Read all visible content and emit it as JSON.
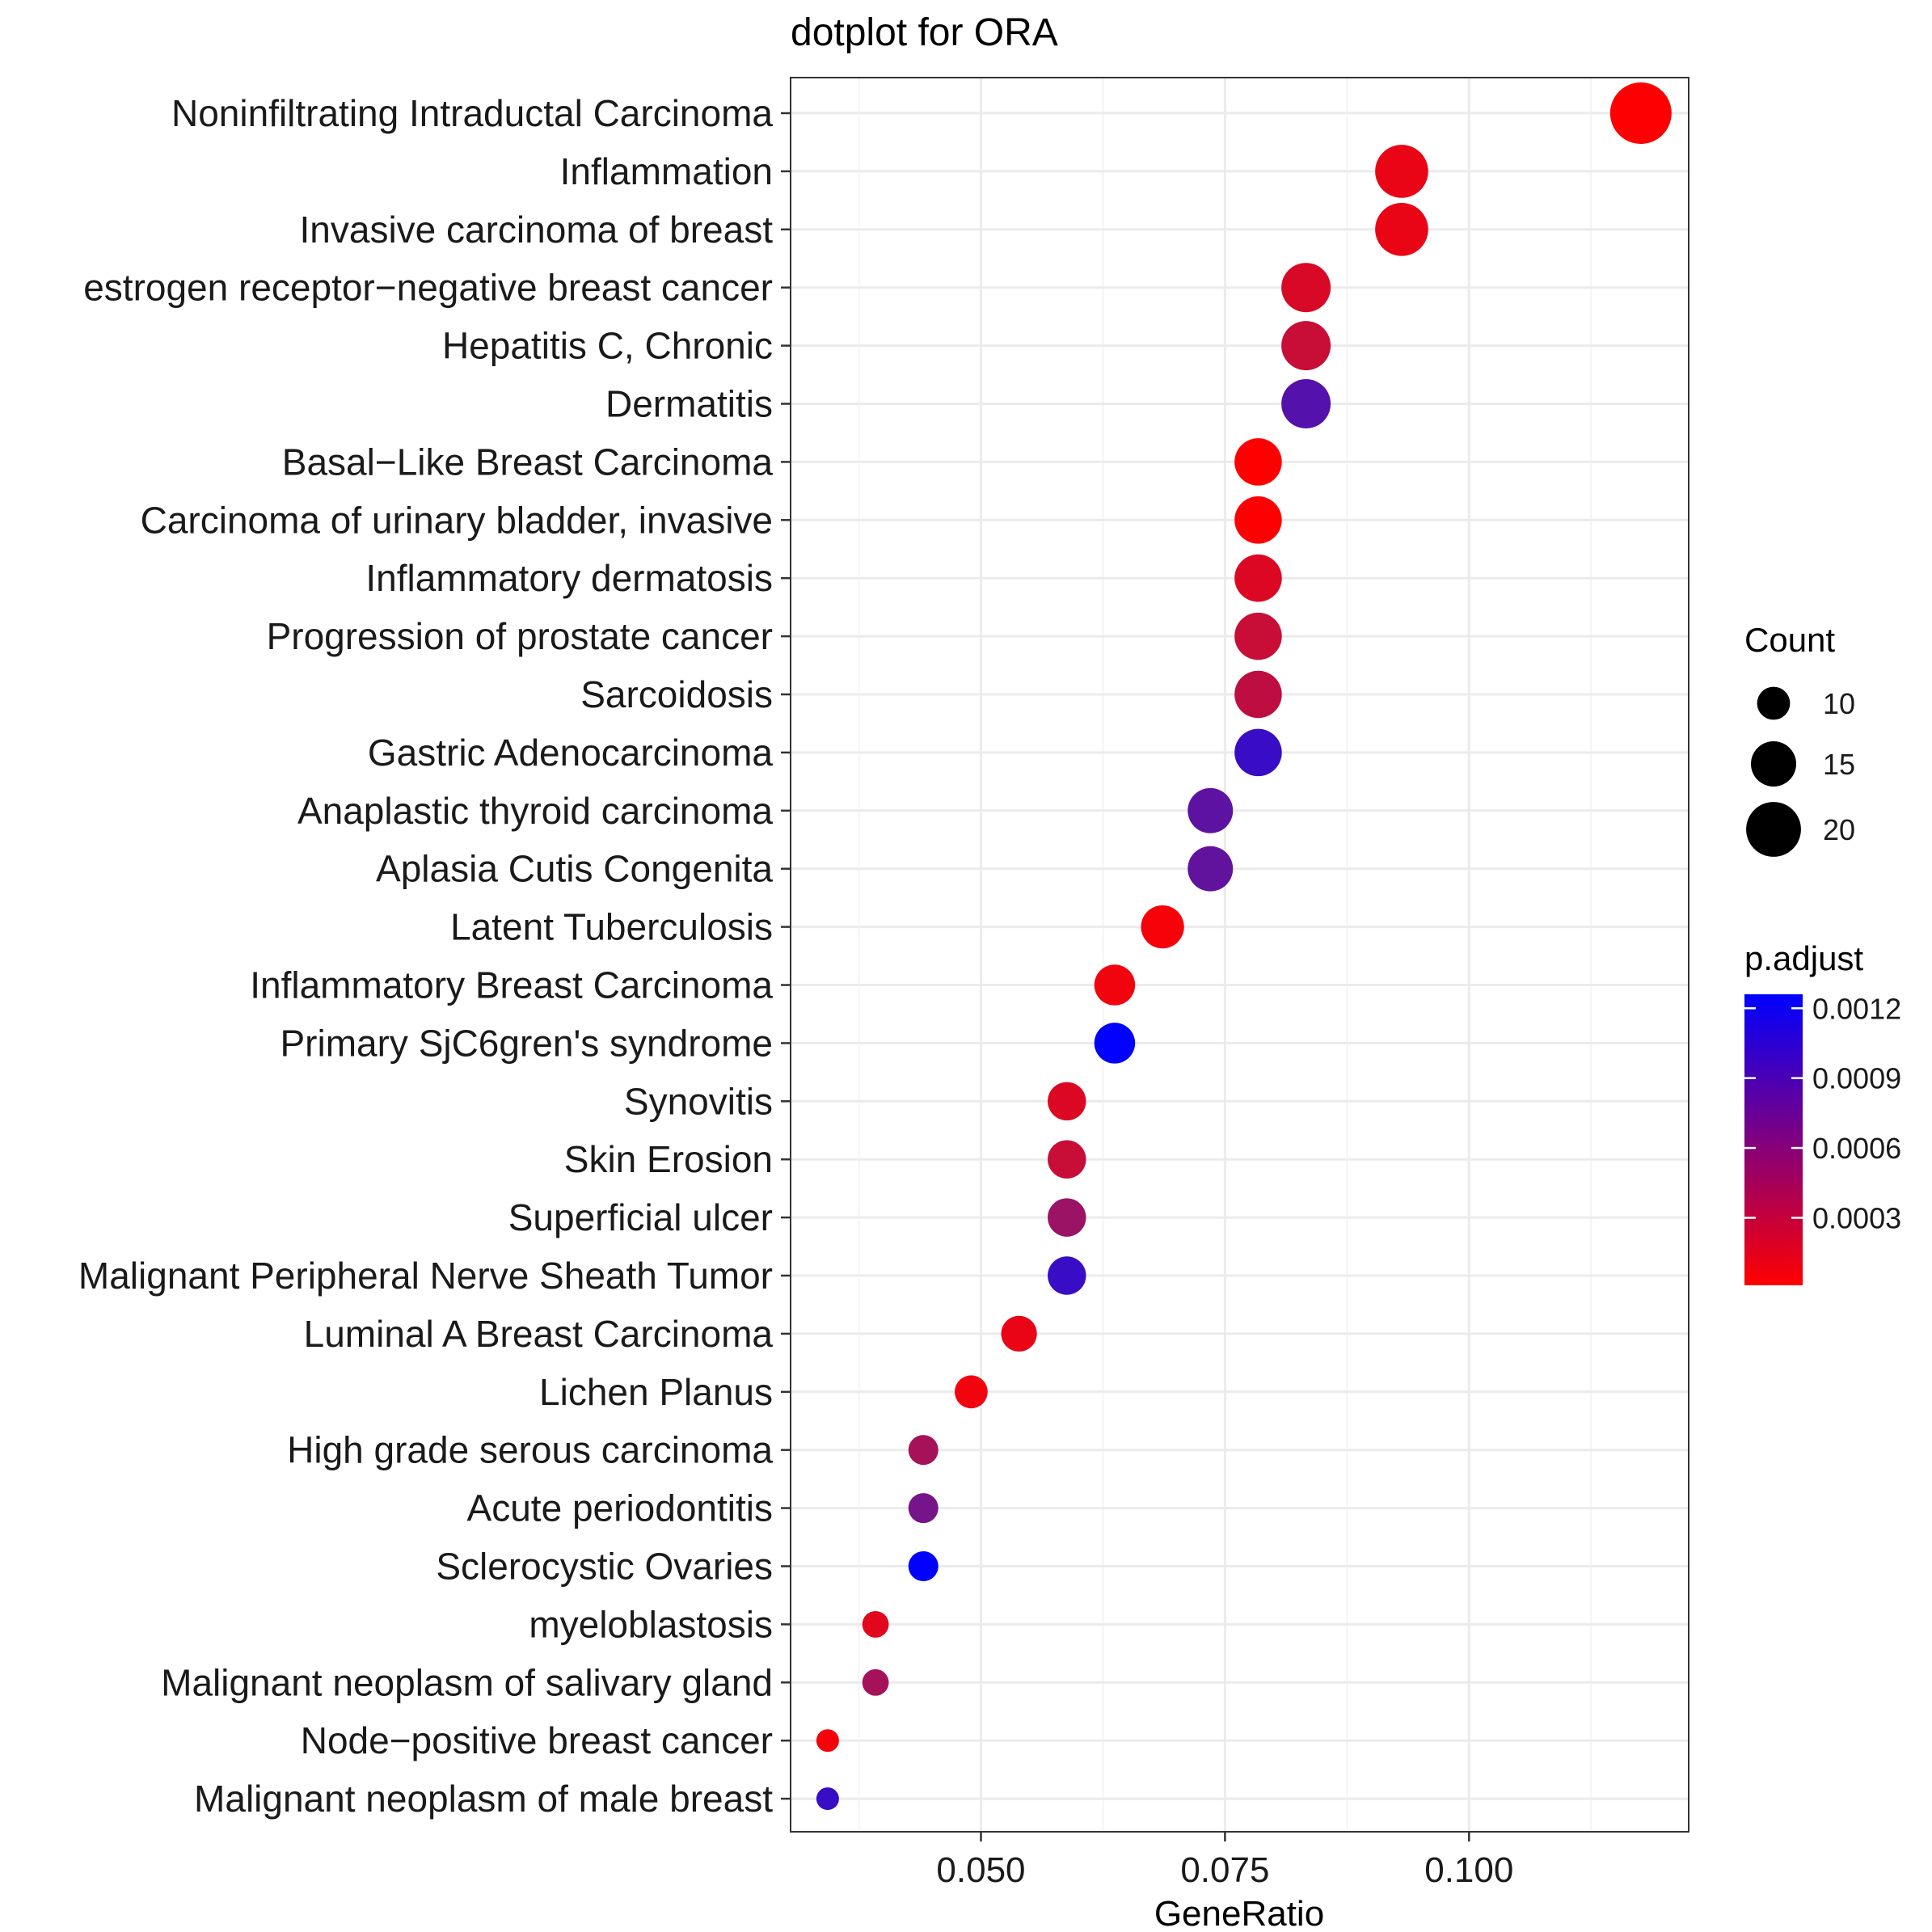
{
  "chart_data": {
    "type": "scatter",
    "title": "dotplot for ORA",
    "xlabel": "GeneRatio",
    "ylabel": "",
    "xlim": [
      0.0305,
      0.1225
    ],
    "xticks": [
      0.05,
      0.075,
      0.1
    ],
    "xtick_labels": [
      "0.050",
      "0.075",
      "0.100"
    ],
    "grid": true,
    "colors": {
      "low": "#ff0000",
      "high": "#0000ff",
      "point_outline": "none",
      "panel_border": "#333333",
      "grid_major": "#ebebeb",
      "grid_minor": "#f4f4f4"
    },
    "categories": [
      "Noninfiltrating Intraductal Carcinoma",
      "Inflammation",
      "Invasive carcinoma of breast",
      "estrogen receptor−negative breast cancer",
      "Hepatitis C, Chronic",
      "Dermatitis",
      "Basal−Like Breast Carcinoma",
      "Carcinoma of urinary bladder, invasive",
      "Inflammatory dermatosis",
      "Progression of prostate cancer",
      "Sarcoidosis",
      "Gastric Adenocarcinoma",
      "Anaplastic thyroid carcinoma",
      "Aplasia Cutis Congenita",
      "Latent Tuberculosis",
      "Inflammatory Breast Carcinoma",
      "Primary SjC6gren's syndrome",
      "Synovitis",
      "Skin Erosion",
      "Superficial ulcer",
      "Malignant Peripheral Nerve Sheath Tumor",
      "Luminal A Breast Carcinoma",
      "Lichen Planus",
      "High grade serous carcinoma",
      "Acute periodontitis",
      "Sclerocystic Ovaries",
      "myeloblastosis",
      "Malignant neoplasm of salivary gland",
      "Node−positive breast cancer",
      "Malignant neoplasm of male breast"
    ],
    "gene_ratio": [
      0.1176,
      0.0931,
      0.0931,
      0.0833,
      0.0833,
      0.0833,
      0.0784,
      0.0784,
      0.0784,
      0.0784,
      0.0784,
      0.0784,
      0.0735,
      0.0735,
      0.0686,
      0.0637,
      0.0637,
      0.0588,
      0.0588,
      0.0588,
      0.0588,
      0.0539,
      0.049,
      0.0441,
      0.0441,
      0.0441,
      0.0392,
      0.0392,
      0.0343,
      0.0343
    ],
    "count": [
      24,
      19,
      19,
      17,
      17,
      17,
      16,
      16,
      16,
      16,
      16,
      16,
      15,
      15,
      14,
      13,
      13,
      12,
      12,
      12,
      12,
      11,
      10,
      9,
      9,
      9,
      8,
      8,
      7,
      7
    ],
    "p_adjust": [
      2e-05,
      0.00012,
      0.00012,
      0.0002,
      0.00028,
      0.00085,
      1e-05,
      2e-05,
      0.00018,
      0.00028,
      0.00033,
      0.00098,
      0.0008,
      0.00078,
      5e-05,
      8e-05,
      0.00125,
      0.00018,
      0.00028,
      0.0005,
      0.00098,
      0.00012,
      8e-05,
      0.00045,
      0.00068,
      0.00125,
      0.00015,
      0.00045,
      6e-05,
      0.00098
    ],
    "legend_count": {
      "title": "Count",
      "values": [
        10,
        15,
        20
      ],
      "labels": [
        "10",
        "15",
        "20"
      ]
    },
    "legend_color": {
      "title": "p.adjust",
      "range": [
        1e-05,
        0.00126
      ],
      "ticks": [
        0.0012,
        0.0009,
        0.0006,
        0.0003
      ],
      "labels": [
        "0.0012",
        "0.0009",
        "0.0006",
        "0.0003"
      ]
    },
    "legend_position": "right"
  }
}
